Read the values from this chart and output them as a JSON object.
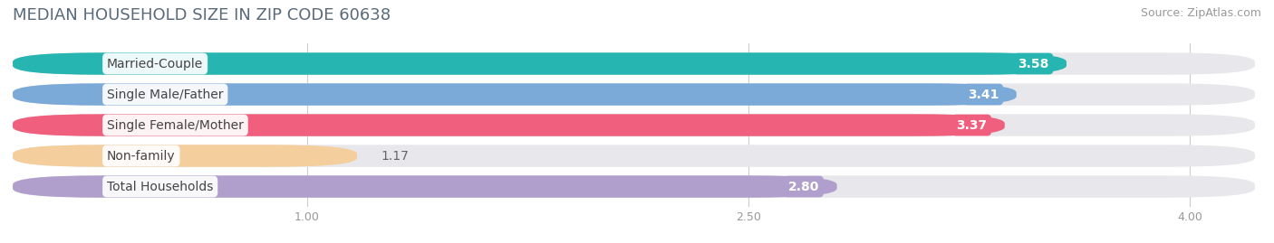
{
  "title": "MEDIAN HOUSEHOLD SIZE IN ZIP CODE 60638",
  "source": "Source: ZipAtlas.com",
  "categories": [
    "Married-Couple",
    "Single Male/Father",
    "Single Female/Mother",
    "Non-family",
    "Total Households"
  ],
  "values": [
    3.58,
    3.41,
    3.37,
    1.17,
    2.8
  ],
  "bar_colors": [
    "#27b5b2",
    "#7baad8",
    "#f0607e",
    "#f5ce9e",
    "#b09fcc"
  ],
  "value_pill_colors": [
    "#27b5b2",
    "#7baad8",
    "#f0607e",
    "#f0607e",
    "#b09fcc"
  ],
  "label_text_colors": [
    "white",
    "white",
    "white",
    "black",
    "white"
  ],
  "xlim": [
    0,
    4.22
  ],
  "xaxis_min": 0,
  "xaxis_max": 4.0,
  "xticks": [
    1.0,
    2.5,
    4.0
  ],
  "background_color": "#ffffff",
  "bar_bg_color": "#e8e8ec",
  "title_fontsize": 13,
  "source_fontsize": 9,
  "category_label_fontsize": 10,
  "value_label_fontsize": 10,
  "bar_height": 0.72,
  "bar_gap": 0.28
}
